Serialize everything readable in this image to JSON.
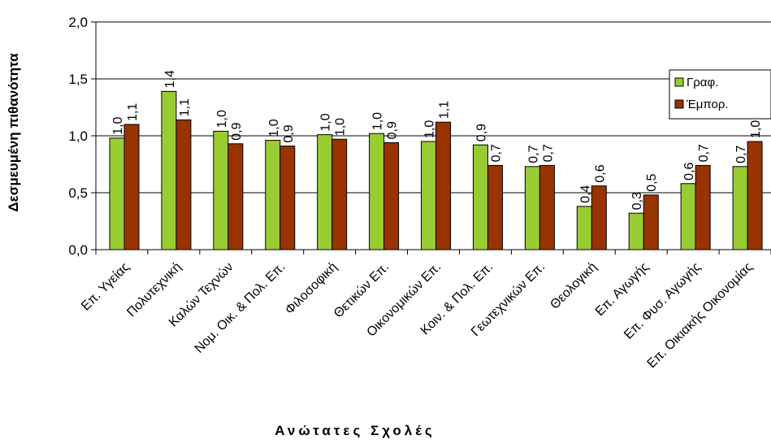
{
  "chart_data": {
    "type": "bar",
    "ylabel": "Δεσμευμένη πιθανότητα",
    "xlabel": "Ανώτατες Σχολές",
    "ylim": [
      0,
      2.0
    ],
    "yticks": [
      "0,0",
      "0,5",
      "1,0",
      "1,5",
      "2,0"
    ],
    "grid": "horizontal",
    "legend_position": "right",
    "categories": [
      "Επ. Υγείας",
      "Πολυτεχνική",
      "Καλών Τεχνών",
      "Νομ. Οικ. & Πολ. Επ.",
      "Φιλοσοφική",
      "Θετικών Επ.",
      "Οικονομικών Επ.",
      "Κοιν. & Πολ. Επ.",
      "Γεωτεχνικών Επ.",
      "Θεολογική",
      "Επ. Αγωγής",
      "Επ. Φυσ. Αγωγής",
      "Επ. Οικιακής Οικονομίας"
    ],
    "series": [
      {
        "name": "Γραφ.",
        "color": "#99cc33",
        "values": [
          0.98,
          1.39,
          1.04,
          0.96,
          1.01,
          1.02,
          0.95,
          0.92,
          0.73,
          0.38,
          0.32,
          0.58,
          0.73
        ],
        "labels": [
          "1,0",
          "1,4",
          "1,0",
          "1,0",
          "1,0",
          "1,0",
          "1,0",
          "0,9",
          "0,7",
          "0,4",
          "0,3",
          "0,6",
          "0,7"
        ]
      },
      {
        "name": "Έμπορ.",
        "color": "#993300",
        "values": [
          1.1,
          1.14,
          0.93,
          0.91,
          0.97,
          0.94,
          1.12,
          0.74,
          0.74,
          0.56,
          0.48,
          0.74,
          0.95
        ],
        "labels": [
          "1,1",
          "1,1",
          "0,9",
          "0,9",
          "1,0",
          "0,9",
          "1,1",
          "0,7",
          "0,7",
          "0,6",
          "0,5",
          "0,7",
          "1,0"
        ]
      }
    ]
  }
}
